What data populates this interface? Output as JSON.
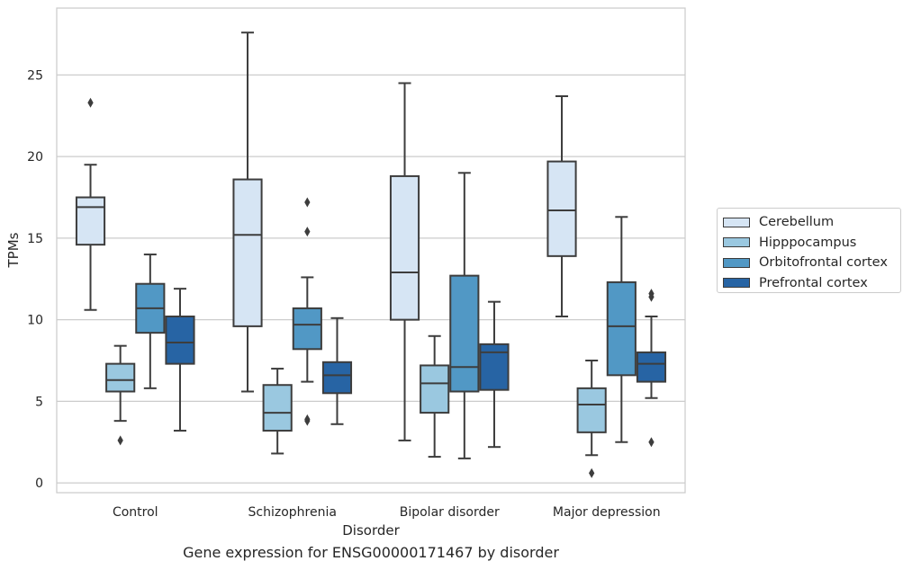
{
  "chart_data": {
    "type": "box",
    "xlabel": "Disorder",
    "ylabel": "TPMs",
    "caption": "Gene expression for ENSG00000171467 by disorder",
    "ylim": [
      -0.6,
      29.1
    ],
    "yticks": [
      0,
      5,
      10,
      15,
      20,
      25
    ],
    "grid": "y",
    "legend_position": "right",
    "categories": [
      "Control",
      "Schizophrenia",
      "Bipolar disorder",
      "Major depression"
    ],
    "series": [
      {
        "name": "Cerebellum",
        "color": "#d6e5f4",
        "boxes": [
          {
            "min": 10.6,
            "q1": 14.6,
            "median": 16.9,
            "q3": 17.5,
            "max": 19.5,
            "outliers": [
              23.3
            ]
          },
          {
            "min": 5.6,
            "q1": 9.6,
            "median": 15.2,
            "q3": 18.6,
            "max": 27.6,
            "outliers": []
          },
          {
            "min": 2.6,
            "q1": 10.0,
            "median": 12.9,
            "q3": 18.8,
            "max": 24.5,
            "outliers": []
          },
          {
            "min": 10.2,
            "q1": 13.9,
            "median": 16.7,
            "q3": 19.7,
            "max": 23.7,
            "outliers": []
          }
        ]
      },
      {
        "name": "Hipppocampus",
        "color": "#9ac8e0",
        "boxes": [
          {
            "min": 3.8,
            "q1": 5.6,
            "median": 6.3,
            "q3": 7.3,
            "max": 8.4,
            "outliers": [
              2.6
            ]
          },
          {
            "min": 1.8,
            "q1": 3.2,
            "median": 4.3,
            "q3": 6.0,
            "max": 7.0,
            "outliers": []
          },
          {
            "min": 1.6,
            "q1": 4.3,
            "median": 6.1,
            "q3": 7.2,
            "max": 9.0,
            "outliers": []
          },
          {
            "min": 1.7,
            "q1": 3.1,
            "median": 4.8,
            "q3": 5.8,
            "max": 7.5,
            "outliers": [
              0.6
            ]
          }
        ]
      },
      {
        "name": "Orbitofrontal cortex",
        "color": "#5198c5",
        "boxes": [
          {
            "min": 5.8,
            "q1": 9.2,
            "median": 10.7,
            "q3": 12.2,
            "max": 14.0,
            "outliers": []
          },
          {
            "min": 6.2,
            "q1": 8.2,
            "median": 9.7,
            "q3": 10.7,
            "max": 12.6,
            "outliers": [
              17.2,
              15.4,
              3.9,
              3.8
            ]
          },
          {
            "min": 1.5,
            "q1": 5.6,
            "median": 7.1,
            "q3": 12.7,
            "max": 19.0,
            "outliers": []
          },
          {
            "min": 2.5,
            "q1": 6.6,
            "median": 9.6,
            "q3": 12.3,
            "max": 16.3,
            "outliers": []
          }
        ]
      },
      {
        "name": "Prefrontal cortex",
        "color": "#2764a4",
        "boxes": [
          {
            "min": 3.2,
            "q1": 7.3,
            "median": 8.6,
            "q3": 10.2,
            "max": 11.9,
            "outliers": []
          },
          {
            "min": 3.6,
            "q1": 5.5,
            "median": 6.6,
            "q3": 7.4,
            "max": 10.1,
            "outliers": []
          },
          {
            "min": 2.2,
            "q1": 5.7,
            "median": 8.0,
            "q3": 8.5,
            "max": 11.1,
            "outliers": []
          },
          {
            "min": 5.2,
            "q1": 6.2,
            "median": 7.3,
            "q3": 8.0,
            "max": 10.2,
            "outliers": [
              11.6,
              11.4,
              2.5
            ]
          }
        ]
      }
    ]
  }
}
